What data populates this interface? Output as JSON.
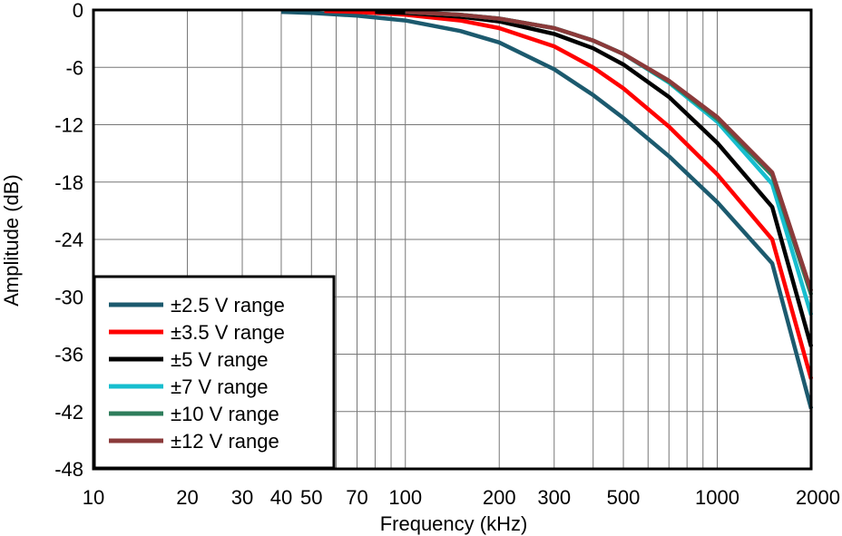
{
  "chart_data": {
    "type": "line",
    "title": "",
    "xlabel": "Frequency (kHz)",
    "ylabel": "Amplitude (dB)",
    "xscale": "log",
    "xlim": [
      10,
      2000
    ],
    "ylim": [
      -48,
      0
    ],
    "grid": true,
    "legend_position": "bottom-left",
    "x_ticks": [
      10,
      20,
      30,
      40,
      50,
      70,
      100,
      200,
      300,
      500,
      1000,
      2000
    ],
    "x_tick_labels": [
      "10",
      "20",
      "30",
      "40",
      "50",
      "70",
      "100",
      "200",
      "300",
      "500",
      "1000",
      "2000"
    ],
    "y_ticks": [
      0,
      -6,
      -12,
      -18,
      -24,
      -30,
      -36,
      -42,
      -48
    ],
    "y_tick_labels": [
      "0",
      "-6",
      "-12",
      "-18",
      "-24",
      "-30",
      "-36",
      "-42",
      "-48"
    ],
    "series": [
      {
        "name": "±2.5 V range",
        "color": "#1c5a6e",
        "x": [
          40,
          50,
          70,
          100,
          150,
          200,
          300,
          400,
          500,
          700,
          1000,
          1500,
          2000
        ],
        "y": [
          -0.2,
          -0.3,
          -0.6,
          -1.1,
          -2.2,
          -3.4,
          -6.2,
          -8.9,
          -11.3,
          -15.3,
          -20.1,
          -26.5,
          -41.7
        ]
      },
      {
        "name": "±3.5 V range",
        "color": "#ff0000",
        "x": [
          55,
          70,
          100,
          150,
          200,
          300,
          400,
          500,
          700,
          1000,
          1500,
          2000
        ],
        "y": [
          -0.1,
          -0.2,
          -0.5,
          -1.1,
          -1.9,
          -3.8,
          -6.0,
          -8.2,
          -12.2,
          -17.2,
          -24.0,
          -38.6
        ]
      },
      {
        "name": "±5 V range",
        "color": "#000000",
        "x": [
          80,
          100,
          150,
          200,
          300,
          400,
          500,
          700,
          1000,
          1500,
          2000
        ],
        "y": [
          -0.2,
          -0.3,
          -0.7,
          -1.2,
          -2.5,
          -4.0,
          -5.7,
          -9.1,
          -13.9,
          -20.6,
          -35.2
        ]
      },
      {
        "name": "±7 V range",
        "color": "#17becf",
        "x": [
          100,
          150,
          200,
          300,
          400,
          500,
          700,
          1000,
          1500,
          2000
        ],
        "y": [
          -0.2,
          -0.5,
          -0.9,
          -1.9,
          -3.2,
          -4.6,
          -7.6,
          -11.7,
          -18.2,
          -31.9
        ]
      },
      {
        "name": "±10 V range",
        "color": "#2e7d5b",
        "x": [
          100,
          150,
          200,
          300,
          400,
          500,
          700,
          1000,
          1500,
          2000
        ],
        "y": [
          -0.2,
          -0.5,
          -0.9,
          -1.9,
          -3.2,
          -4.6,
          -7.5,
          -11.4,
          -17.3,
          -29.8
        ]
      },
      {
        "name": "±12 V range",
        "color": "#8b3a3a",
        "x": [
          100,
          150,
          200,
          300,
          400,
          500,
          700,
          1000,
          1500,
          2000
        ],
        "y": [
          -0.2,
          -0.5,
          -0.9,
          -1.9,
          -3.2,
          -4.6,
          -7.4,
          -11.2,
          -17.0,
          -29.4
        ]
      }
    ]
  }
}
